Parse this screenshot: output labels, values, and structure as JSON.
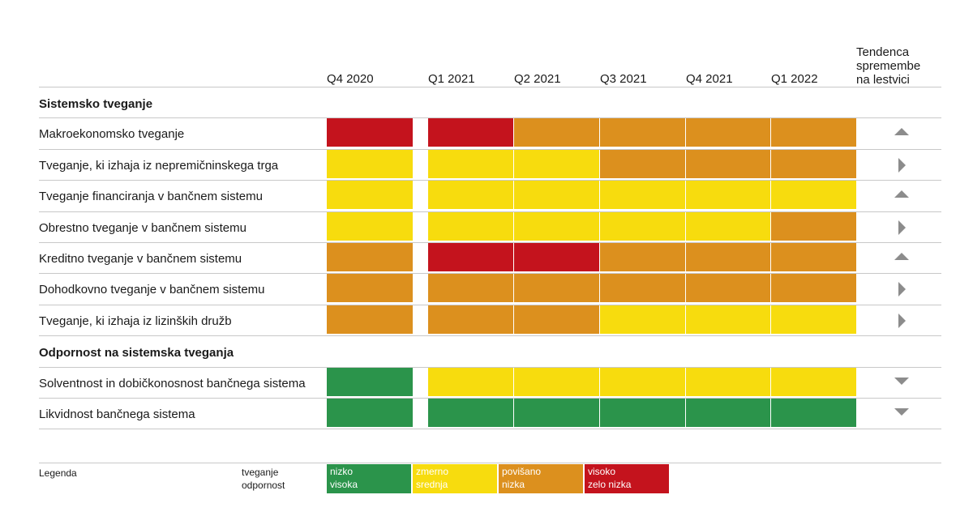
{
  "columns": [
    "Q4 2020",
    "Q1 2021",
    "Q2 2021",
    "Q3 2021",
    "Q4 2021",
    "Q1 2022"
  ],
  "trend_header": [
    "Tendenca",
    "spremembe",
    "na lestvici"
  ],
  "colors": {
    "green": "#2b944b",
    "yellow": "#f7dc0e",
    "orange": "#dc901e",
    "red": "#c4131d",
    "trend_icon": "#8c8c8c"
  },
  "sections": [
    {
      "title": "Sistemsko tveganje",
      "rows": [
        {
          "label": "Makroekonomsko tveganje",
          "levels": [
            "red",
            "red",
            "orange",
            "orange",
            "orange",
            "orange"
          ],
          "trend": "up"
        },
        {
          "label": "Tveganje, ki izhaja iz nepremičninskega trga",
          "levels": [
            "yellow",
            "yellow",
            "yellow",
            "orange",
            "orange",
            "orange"
          ],
          "trend": "right"
        },
        {
          "label": "Tveganje financiranja v bančnem sistemu",
          "levels": [
            "yellow",
            "yellow",
            "yellow",
            "yellow",
            "yellow",
            "yellow"
          ],
          "trend": "up"
        },
        {
          "label": "Obrestno tveganje v bančnem sistemu",
          "levels": [
            "yellow",
            "yellow",
            "yellow",
            "yellow",
            "yellow",
            "orange"
          ],
          "trend": "right"
        },
        {
          "label": "Kreditno tveganje v bančnem sistemu",
          "levels": [
            "orange",
            "red",
            "red",
            "orange",
            "orange",
            "orange"
          ],
          "trend": "up"
        },
        {
          "label": "Dohodkovno tveganje v bančnem sistemu",
          "levels": [
            "orange",
            "orange",
            "orange",
            "orange",
            "orange",
            "orange"
          ],
          "trend": "right"
        },
        {
          "label": "Tveganje, ki izhaja iz lizinških družb",
          "levels": [
            "orange",
            "orange",
            "orange",
            "yellow",
            "yellow",
            "yellow"
          ],
          "trend": "right"
        }
      ]
    },
    {
      "title": "Odpornost na sistemska tveganja",
      "rows": [
        {
          "label": "Solventnost in dobičkonosnost bančnega sistema",
          "levels": [
            "green",
            "yellow",
            "yellow",
            "yellow",
            "yellow",
            "yellow"
          ],
          "trend": "down"
        },
        {
          "label": "Likvidnost bančnega sistema",
          "levels": [
            "green",
            "green",
            "green",
            "green",
            "green",
            "green"
          ],
          "trend": "down"
        }
      ]
    }
  ],
  "legend": {
    "label": "Legenda",
    "kinds": [
      "tveganje",
      "odpornost"
    ],
    "items": [
      {
        "color": "green",
        "risk": "nizko",
        "resilience": "visoka"
      },
      {
        "color": "yellow",
        "risk": "zmerno",
        "resilience": "srednja"
      },
      {
        "color": "orange",
        "risk": "povišano",
        "resilience": "nizka"
      },
      {
        "color": "red",
        "risk": "visoko",
        "resilience": "zelo nizka"
      }
    ]
  }
}
